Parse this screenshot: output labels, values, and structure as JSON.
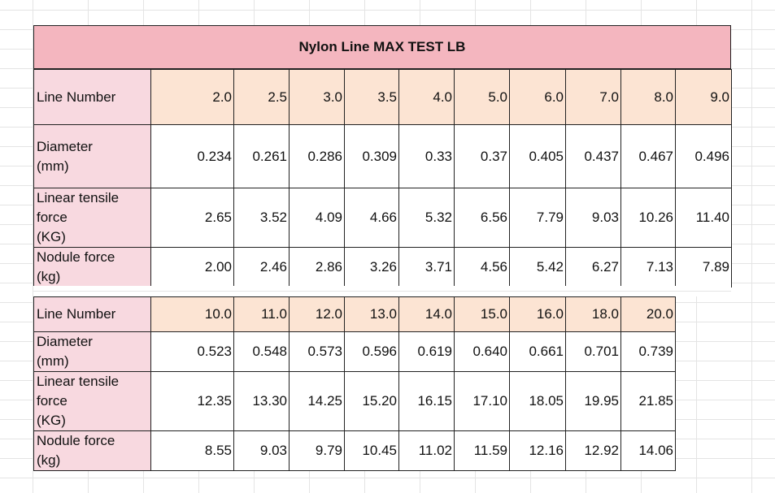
{
  "title": "Nylon Line MAX TEST LB",
  "table1": {
    "rows": [
      {
        "label": "Line Number",
        "values": [
          "2.0",
          "2.5",
          "3.0",
          "3.5",
          "4.0",
          "5.0",
          "6.0",
          "7.0",
          "8.0",
          "9.0"
        ]
      },
      {
        "label": "Diameter\n(mm)",
        "values": [
          "0.234",
          "0.261",
          "0.286",
          "0.309",
          "0.33",
          "0.37",
          "0.405",
          "0.437",
          "0.467",
          "0.496"
        ]
      },
      {
        "label": "Linear tensile\nforce\n(KG)",
        "values": [
          "2.65",
          "3.52",
          "4.09",
          "4.66",
          "5.32",
          "6.56",
          "7.79",
          "9.03",
          "10.26",
          "11.40"
        ]
      },
      {
        "label": "Nodule force\n(kg)",
        "values": [
          "2.00",
          "2.46",
          "2.86",
          "3.26",
          "3.71",
          "4.56",
          "5.42",
          "6.27",
          "7.13",
          "7.89"
        ]
      }
    ]
  },
  "table2": {
    "rows": [
      {
        "label": "Line Number",
        "values": [
          "10.0",
          "11.0",
          "12.0",
          "13.0",
          "14.0",
          "15.0",
          "16.0",
          "18.0",
          "20.0"
        ]
      },
      {
        "label": "Diameter\n(mm)",
        "values": [
          "0.523",
          "0.548",
          "0.573",
          "0.596",
          "0.619",
          "0.640",
          "0.661",
          "0.701",
          "0.739"
        ]
      },
      {
        "label": "Linear tensile\nforce\n(KG)",
        "values": [
          "12.35",
          "13.30",
          "14.25",
          "15.20",
          "16.15",
          "17.10",
          "18.05",
          "19.95",
          "21.85"
        ]
      },
      {
        "label": "Nodule force\n(kg)",
        "values": [
          "8.55",
          "9.03",
          "9.79",
          "10.45",
          "11.02",
          "11.59",
          "12.16",
          "12.92",
          "14.06"
        ]
      }
    ]
  },
  "colors": {
    "title_fill": "#f4b6bf",
    "label_fill": "#f8d9e0",
    "header_fill": "#fce4d3",
    "grid_line": "#e4e4e4"
  }
}
